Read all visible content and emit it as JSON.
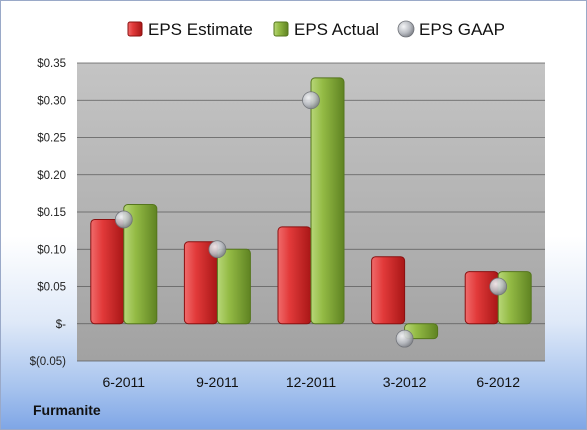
{
  "chart_data": {
    "type": "bar",
    "categories": [
      "6-2011",
      "9-2011",
      "12-2011",
      "3-2012",
      "6-2012"
    ],
    "series": [
      {
        "name": "EPS Estimate",
        "kind": "bar",
        "color": "#d42b2b",
        "values": [
          0.14,
          0.11,
          0.13,
          0.09,
          0.07
        ]
      },
      {
        "name": "EPS Actual",
        "kind": "bar",
        "color": "#8bb33b",
        "values": [
          0.16,
          0.1,
          0.33,
          -0.02,
          0.07
        ]
      },
      {
        "name": "EPS GAAP",
        "kind": "marker",
        "color": "#b9bcc2",
        "values": [
          0.14,
          0.1,
          0.3,
          -0.02,
          0.05
        ]
      }
    ],
    "ylim": [
      -0.05,
      0.35
    ],
    "yticks": [
      0.35,
      0.3,
      0.25,
      0.2,
      0.15,
      0.1,
      0.05,
      0,
      -0.05
    ],
    "ytick_labels": [
      "$0.35",
      "$0.30",
      "$0.25",
      "$0.20",
      "$0.15",
      "$0.10",
      "$0.05",
      "$-",
      "$(0.05)"
    ],
    "legend_position": "top",
    "grid": true
  },
  "company": "Furmanite"
}
